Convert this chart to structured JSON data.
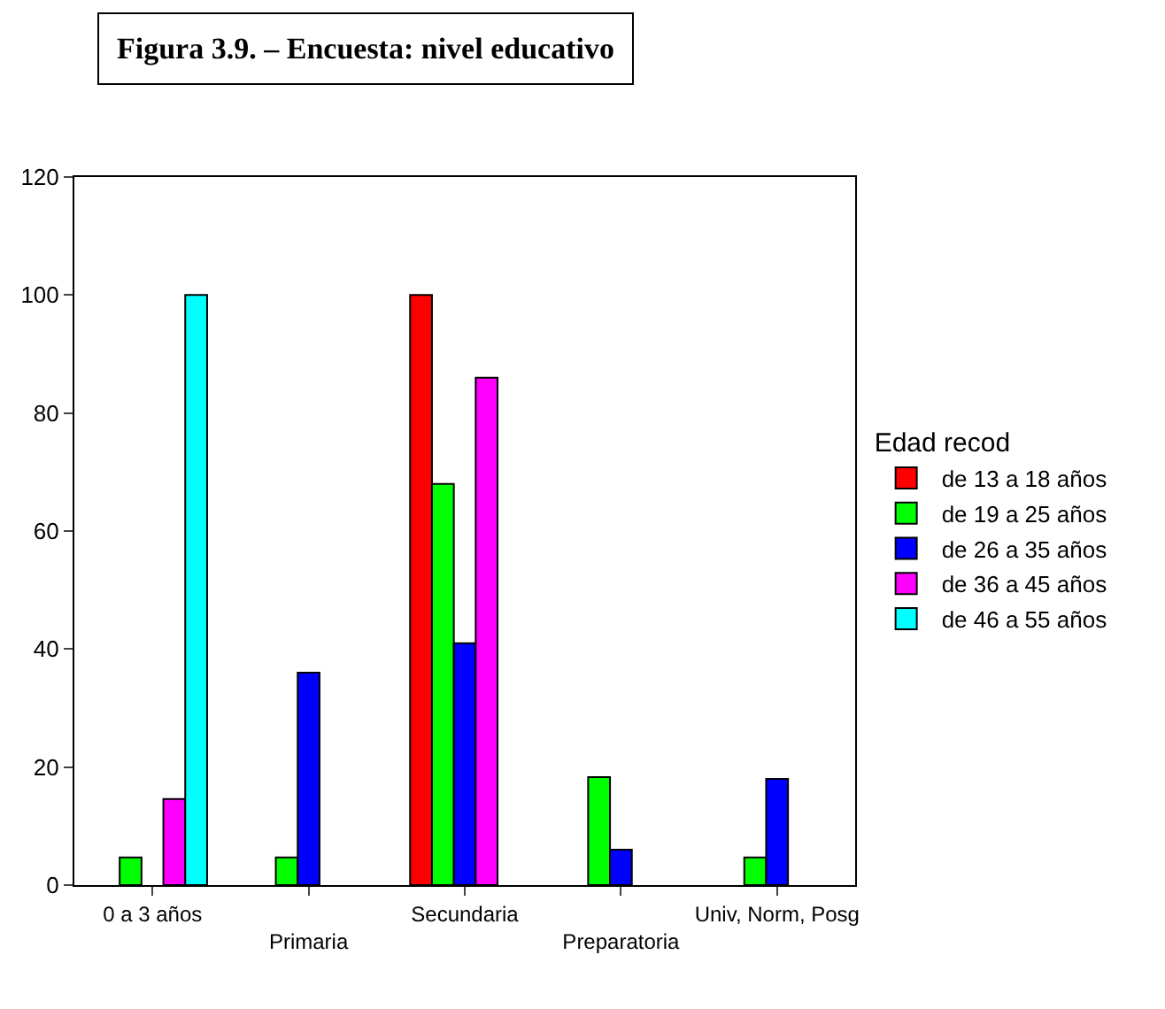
{
  "chart_data": {
    "type": "bar",
    "title": "Figura 3.9. – Encuesta: nivel educativo",
    "legend_title": "Edad recod",
    "categories": [
      "0 a 3 años",
      "Primaria",
      "Secundaria",
      "Preparatoria",
      "Univ, Norm, Posg"
    ],
    "series": [
      {
        "name": "de 13 a 18 años",
        "color": "#ff0000",
        "values": [
          null,
          null,
          100,
          null,
          null
        ]
      },
      {
        "name": "de 19 a 25 años",
        "color": "#00ff00",
        "values": [
          4.7,
          4.7,
          68,
          18.3,
          4.7
        ]
      },
      {
        "name": "de 26 a 35 años",
        "color": "#0000ff",
        "values": [
          null,
          36,
          41,
          6,
          18
        ]
      },
      {
        "name": "de 36 a 45 años",
        "color": "#ff00ff",
        "values": [
          14.6,
          null,
          86,
          null,
          null
        ]
      },
      {
        "name": "de 46 a 55 años",
        "color": "#00ffff",
        "values": [
          100,
          null,
          null,
          null,
          null
        ]
      }
    ],
    "ylim": [
      0,
      120
    ],
    "yticks": [
      0,
      20,
      40,
      60,
      80,
      100,
      120
    ],
    "legend": "right"
  }
}
